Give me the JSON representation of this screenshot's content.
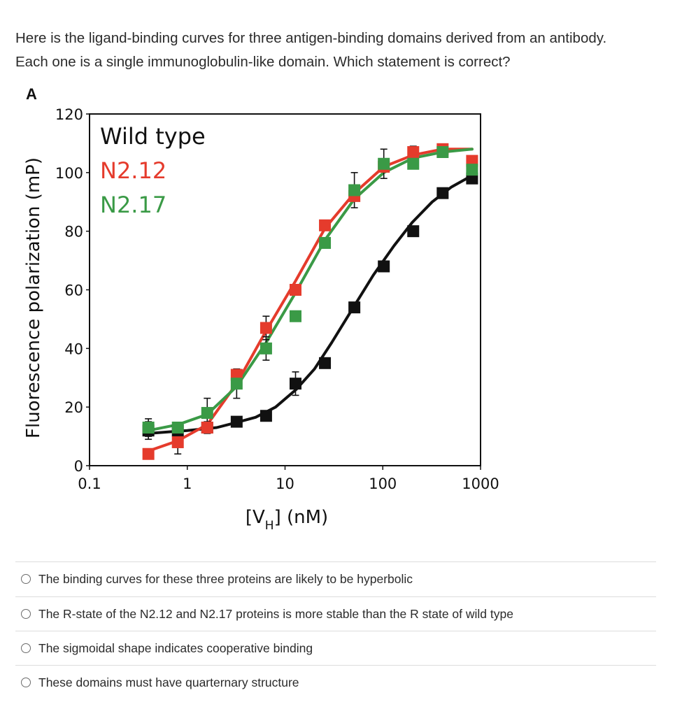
{
  "question": {
    "line1": "Here is the ligand-binding curves for three antigen-binding domains derived from an antibody.",
    "line2": "Each one is a single immunoglobulin-like domain. Which statement is correct?"
  },
  "options": [
    "The binding curves for these three proteins are likely to be hyperbolic",
    "The R-state of the N2.12 and N2.17 proteins is more stable than the R state of wild type",
    "The sigmoidal shape indicates cooperative binding",
    "These domains must have quarternary structure"
  ],
  "chart_data": {
    "type": "scatter",
    "panel_label": "A",
    "ylabel": "Fluorescence polarization (mP)",
    "xlabel_main": "[V",
    "xlabel_sub": "H",
    "xlabel_end": "] (nM)",
    "x_scale": "log",
    "xlim": [
      0.1,
      1000
    ],
    "ylim": [
      0,
      120
    ],
    "x_ticks": [
      0.1,
      1,
      10,
      100,
      1000
    ],
    "x_tick_labels": [
      "0.1",
      "1",
      "10",
      "100",
      "1000"
    ],
    "y_ticks": [
      0,
      20,
      40,
      60,
      80,
      100,
      120
    ],
    "y_tick_labels": [
      "0",
      "20",
      "40",
      "60",
      "80",
      "100",
      "120"
    ],
    "legend_position": "top-left",
    "series": [
      {
        "name": "Wild type",
        "color": "#111111",
        "x": [
          0.4,
          0.8,
          1.6,
          3.2,
          6.4,
          12.8,
          25.6,
          51.2,
          102.4,
          204.8,
          409.6,
          819.2
        ],
        "y": [
          12,
          12,
          13,
          15,
          17,
          28,
          35,
          54,
          68,
          80,
          93,
          98
        ],
        "err": [
          3,
          0,
          2,
          0,
          0,
          4,
          0,
          0,
          0,
          0,
          0,
          0
        ],
        "curve": [
          [
            0.4,
            11
          ],
          [
            1,
            12
          ],
          [
            2,
            13
          ],
          [
            3,
            14.5
          ],
          [
            5,
            16.5
          ],
          [
            8,
            20
          ],
          [
            13,
            26
          ],
          [
            20,
            33
          ],
          [
            30,
            42
          ],
          [
            50,
            54
          ],
          [
            80,
            65
          ],
          [
            130,
            75
          ],
          [
            200,
            83
          ],
          [
            320,
            90
          ],
          [
            500,
            95
          ],
          [
            819,
            99
          ]
        ]
      },
      {
        "name": "N2.12",
        "color": "#e53b2c",
        "x": [
          0.4,
          0.8,
          1.6,
          3.2,
          6.4,
          12.8,
          25.6,
          51.2,
          102.4,
          204.8,
          409.6,
          819.2
        ],
        "y": [
          4,
          8,
          13,
          31,
          47,
          60,
          82,
          92,
          102,
          107,
          108,
          104
        ],
        "err": [
          0,
          4,
          0,
          0,
          4,
          0,
          0,
          0,
          0,
          2,
          1,
          0
        ],
        "curve": [
          [
            0.4,
            5
          ],
          [
            0.8,
            8.5
          ],
          [
            1.6,
            14
          ],
          [
            3.2,
            28
          ],
          [
            6.4,
            46
          ],
          [
            12.8,
            63
          ],
          [
            25.6,
            81
          ],
          [
            51.2,
            93
          ],
          [
            102.4,
            102
          ],
          [
            204.8,
            106
          ],
          [
            409.6,
            108
          ],
          [
            819.2,
            108
          ]
        ]
      },
      {
        "name": "N2.17",
        "color": "#3a9a46",
        "x": [
          0.4,
          0.8,
          1.6,
          3.2,
          6.4,
          12.8,
          25.6,
          51.2,
          102.4,
          204.8,
          409.6,
          819.2
        ],
        "y": [
          13,
          13,
          18,
          28,
          40,
          51,
          76,
          94,
          103,
          103,
          107,
          101
        ],
        "err": [
          3,
          0,
          5,
          5,
          4,
          0,
          0,
          6,
          5,
          0,
          0,
          0
        ],
        "curve": [
          [
            0.4,
            12
          ],
          [
            0.8,
            14
          ],
          [
            1.6,
            17.5
          ],
          [
            3.2,
            27
          ],
          [
            6.4,
            42
          ],
          [
            12.8,
            59
          ],
          [
            25.6,
            77
          ],
          [
            51.2,
            91
          ],
          [
            102.4,
            100
          ],
          [
            204.8,
            105
          ],
          [
            409.6,
            107
          ],
          [
            819.2,
            108
          ]
        ]
      }
    ]
  }
}
